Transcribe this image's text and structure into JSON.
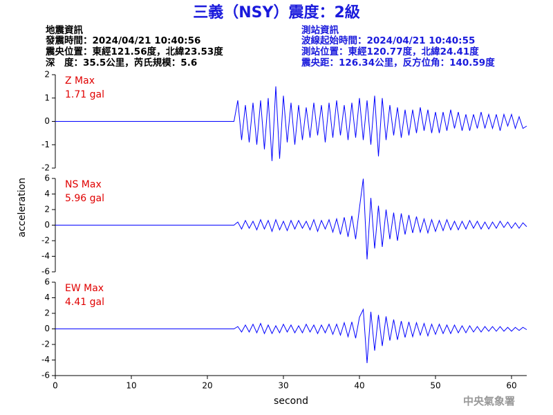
{
  "title": "三義（NSY）震度：2級",
  "header": {
    "left": [
      "地震資訊",
      "發震時間：2024/04/21 10:40:56",
      "震央位置：東經121.56度，北緯23.53度",
      "深　度：35.5公里，芮氏規模：5.6"
    ],
    "right": [
      "測站資訊",
      "波線起始時間：2024/04/21 10:40:55",
      "測站位置：東經120.77度，北緯24.41度",
      "震央距：126.34公里，反方位角：140.59度"
    ]
  },
  "y_label": "acceleration",
  "footer": "中央氣象署",
  "chart_data": [
    {
      "type": "line",
      "title": "Z Max",
      "annotation": "1.71 gal",
      "color": "#0000ff",
      "xlim": [
        0,
        62
      ],
      "ylim": [
        -2,
        2
      ],
      "yticks": [
        -2,
        -1,
        0,
        1,
        2
      ],
      "x": [
        0,
        23.5,
        24,
        24.5,
        25,
        25.5,
        26,
        26.5,
        27,
        27.5,
        28,
        28.5,
        29,
        29.5,
        30,
        30.5,
        31,
        31.5,
        32,
        32.5,
        33,
        33.5,
        34,
        34.5,
        35,
        35.5,
        36,
        36.5,
        37,
        37.5,
        38,
        38.5,
        39,
        39.5,
        40,
        40.5,
        41,
        41.5,
        42,
        42.5,
        43,
        43.5,
        44,
        44.5,
        45,
        45.5,
        46,
        46.5,
        47,
        47.5,
        48,
        48.5,
        49,
        49.5,
        50,
        50.5,
        51,
        51.5,
        52,
        52.5,
        53,
        53.5,
        54,
        54.5,
        55,
        55.5,
        56,
        56.5,
        57,
        57.5,
        58,
        58.5,
        59,
        59.5,
        60,
        60.5,
        61,
        61.5,
        62
      ],
      "values": [
        0,
        0,
        0.9,
        -0.8,
        0.7,
        -0.9,
        0.8,
        -1.0,
        0.9,
        -1.2,
        1.0,
        -1.7,
        1.5,
        -1.6,
        1.1,
        -0.9,
        0.8,
        -1.0,
        0.7,
        -0.8,
        0.6,
        -0.7,
        0.8,
        -0.6,
        0.7,
        -0.9,
        0.8,
        -0.7,
        0.9,
        -0.6,
        0.7,
        -0.8,
        0.8,
        -0.7,
        1.0,
        -0.8,
        0.9,
        -1.0,
        1.1,
        -1.5,
        1.0,
        -0.8,
        0.7,
        -0.6,
        0.6,
        -0.7,
        0.5,
        -0.6,
        0.5,
        -0.5,
        0.6,
        -0.4,
        0.5,
        -0.5,
        0.4,
        -0.5,
        0.4,
        -0.4,
        0.5,
        -0.3,
        0.4,
        -0.4,
        0.3,
        -0.4,
        0.3,
        -0.3,
        0.4,
        -0.3,
        0.3,
        -0.3,
        0.3,
        -0.4,
        0.3,
        -0.2,
        0.3,
        -0.3,
        0.2,
        -0.3,
        -0.2
      ]
    },
    {
      "type": "line",
      "title": "NS Max",
      "annotation": "5.96 gal",
      "color": "#0000ff",
      "xlim": [
        0,
        62
      ],
      "ylim": [
        -6,
        6
      ],
      "yticks": [
        -6,
        -4,
        -2,
        0,
        2,
        4,
        6
      ],
      "x": [
        0,
        23.5,
        24,
        24.5,
        25,
        25.5,
        26,
        26.5,
        27,
        27.5,
        28,
        28.5,
        29,
        29.5,
        30,
        30.5,
        31,
        31.5,
        32,
        32.5,
        33,
        33.5,
        34,
        34.5,
        35,
        35.5,
        36,
        36.5,
        37,
        37.5,
        38,
        38.5,
        39,
        39.5,
        40,
        40.5,
        41,
        41.5,
        42,
        42.5,
        43,
        43.5,
        44,
        44.5,
        45,
        45.5,
        46,
        46.5,
        47,
        47.5,
        48,
        48.5,
        49,
        49.5,
        50,
        50.5,
        51,
        51.5,
        52,
        52.5,
        53,
        53.5,
        54,
        54.5,
        55,
        55.5,
        56,
        56.5,
        57,
        57.5,
        58,
        58.5,
        59,
        59.5,
        60,
        60.5,
        61,
        61.5,
        62
      ],
      "values": [
        0,
        0,
        0.4,
        -0.5,
        0.6,
        -0.4,
        0.5,
        -0.6,
        0.7,
        -0.5,
        0.6,
        -0.8,
        0.7,
        -0.6,
        0.5,
        -0.7,
        0.6,
        -0.5,
        0.6,
        -0.4,
        0.5,
        -0.6,
        0.7,
        -0.8,
        0.6,
        -0.5,
        0.7,
        -0.9,
        0.8,
        -1.2,
        1.0,
        -1.5,
        1.2,
        -1.8,
        2.2,
        5.96,
        -4.4,
        3.5,
        -3.0,
        2.5,
        -2.8,
        2.0,
        -1.8,
        1.6,
        -2.0,
        1.5,
        -1.2,
        1.3,
        -1.0,
        1.1,
        -0.9,
        0.8,
        -1.0,
        0.7,
        -0.8,
        0.6,
        -0.7,
        0.7,
        -0.6,
        0.5,
        -0.6,
        0.5,
        -0.5,
        0.6,
        -0.4,
        0.5,
        -0.5,
        0.4,
        -0.5,
        0.4,
        -0.4,
        0.5,
        -0.3,
        0.4,
        -0.4,
        0.3,
        -0.4,
        0.3,
        -0.2
      ]
    },
    {
      "type": "line",
      "title": "EW Max",
      "annotation": "4.41 gal",
      "color": "#0000ff",
      "xlim": [
        0,
        62
      ],
      "ylim": [
        -6,
        6
      ],
      "yticks": [
        -6,
        -4,
        -2,
        0,
        2,
        4,
        6
      ],
      "xticks": [
        0,
        10,
        20,
        30,
        40,
        50,
        60
      ],
      "xlabel": "second",
      "x": [
        0,
        23.5,
        24,
        24.5,
        25,
        25.5,
        26,
        26.5,
        27,
        27.5,
        28,
        28.5,
        29,
        29.5,
        30,
        30.5,
        31,
        31.5,
        32,
        32.5,
        33,
        33.5,
        34,
        34.5,
        35,
        35.5,
        36,
        36.5,
        37,
        37.5,
        38,
        38.5,
        39,
        39.5,
        40,
        40.5,
        41,
        41.5,
        42,
        42.5,
        43,
        43.5,
        44,
        44.5,
        45,
        45.5,
        46,
        46.5,
        47,
        47.5,
        48,
        48.5,
        49,
        49.5,
        50,
        50.5,
        51,
        51.5,
        52,
        52.5,
        53,
        53.5,
        54,
        54.5,
        55,
        55.5,
        56,
        56.5,
        57,
        57.5,
        58,
        58.5,
        59,
        59.5,
        60,
        60.5,
        61,
        61.5,
        62
      ],
      "values": [
        0,
        0,
        0.3,
        -0.4,
        0.5,
        -0.4,
        0.6,
        -0.5,
        0.7,
        -0.6,
        0.5,
        -0.6,
        0.4,
        -0.5,
        0.6,
        -0.4,
        0.5,
        -0.5,
        0.4,
        -0.5,
        0.6,
        -0.4,
        0.5,
        -0.6,
        0.5,
        -0.5,
        0.6,
        -0.7,
        0.6,
        -0.8,
        0.8,
        -1.0,
        0.9,
        -1.2,
        1.5,
        2.5,
        -4.4,
        2.2,
        -2.8,
        1.8,
        -2.2,
        1.6,
        -1.5,
        1.2,
        -1.4,
        1.0,
        -1.1,
        0.9,
        -1.0,
        0.8,
        -0.8,
        0.7,
        -0.9,
        0.6,
        -0.7,
        0.6,
        -0.6,
        0.5,
        -0.6,
        0.5,
        -0.5,
        0.4,
        -0.5,
        0.4,
        -0.4,
        0.3,
        -0.4,
        0.3,
        -0.3,
        0.3,
        -0.3,
        0.3,
        -0.3,
        0.2,
        -0.3,
        0.2,
        -0.2,
        0.2,
        -0.1
      ]
    }
  ]
}
